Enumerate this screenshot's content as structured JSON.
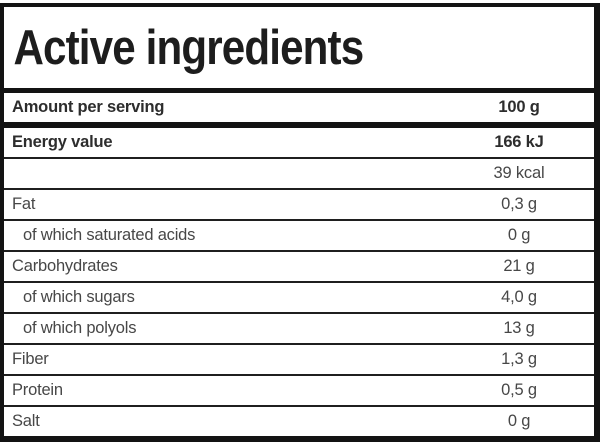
{
  "title": "Active ingredients",
  "table": {
    "amount_row": {
      "label": "Amount per serving",
      "value": "100 g",
      "bold": true
    },
    "rows": [
      {
        "label": "Energy value",
        "value": "166 kJ",
        "bold": true,
        "indent": false
      },
      {
        "label": "",
        "value": "39 kcal",
        "bold": false,
        "indent": false
      },
      {
        "label": "Fat",
        "value": "0,3 g",
        "bold": false,
        "indent": false
      },
      {
        "label": "of which saturated acids",
        "value": "0 g",
        "bold": false,
        "indent": true
      },
      {
        "label": "Carbohydrates",
        "value": "21 g",
        "bold": false,
        "indent": false
      },
      {
        "label": "of which sugars",
        "value": "4,0 g",
        "bold": false,
        "indent": true
      },
      {
        "label": "of which polyols",
        "value": "13 g",
        "bold": false,
        "indent": true
      },
      {
        "label": "Fiber",
        "value": "1,3 g",
        "bold": false,
        "indent": false
      },
      {
        "label": "Protein",
        "value": "0,5 g",
        "bold": false,
        "indent": false
      },
      {
        "label": "Salt",
        "value": "0 g",
        "bold": false,
        "indent": false
      }
    ]
  },
  "colors": {
    "border": "#131313",
    "title_text": "#1d1d1d",
    "row_text": "#474747",
    "bold_row_text": "#2d2d2d",
    "background": "#ffffff"
  }
}
